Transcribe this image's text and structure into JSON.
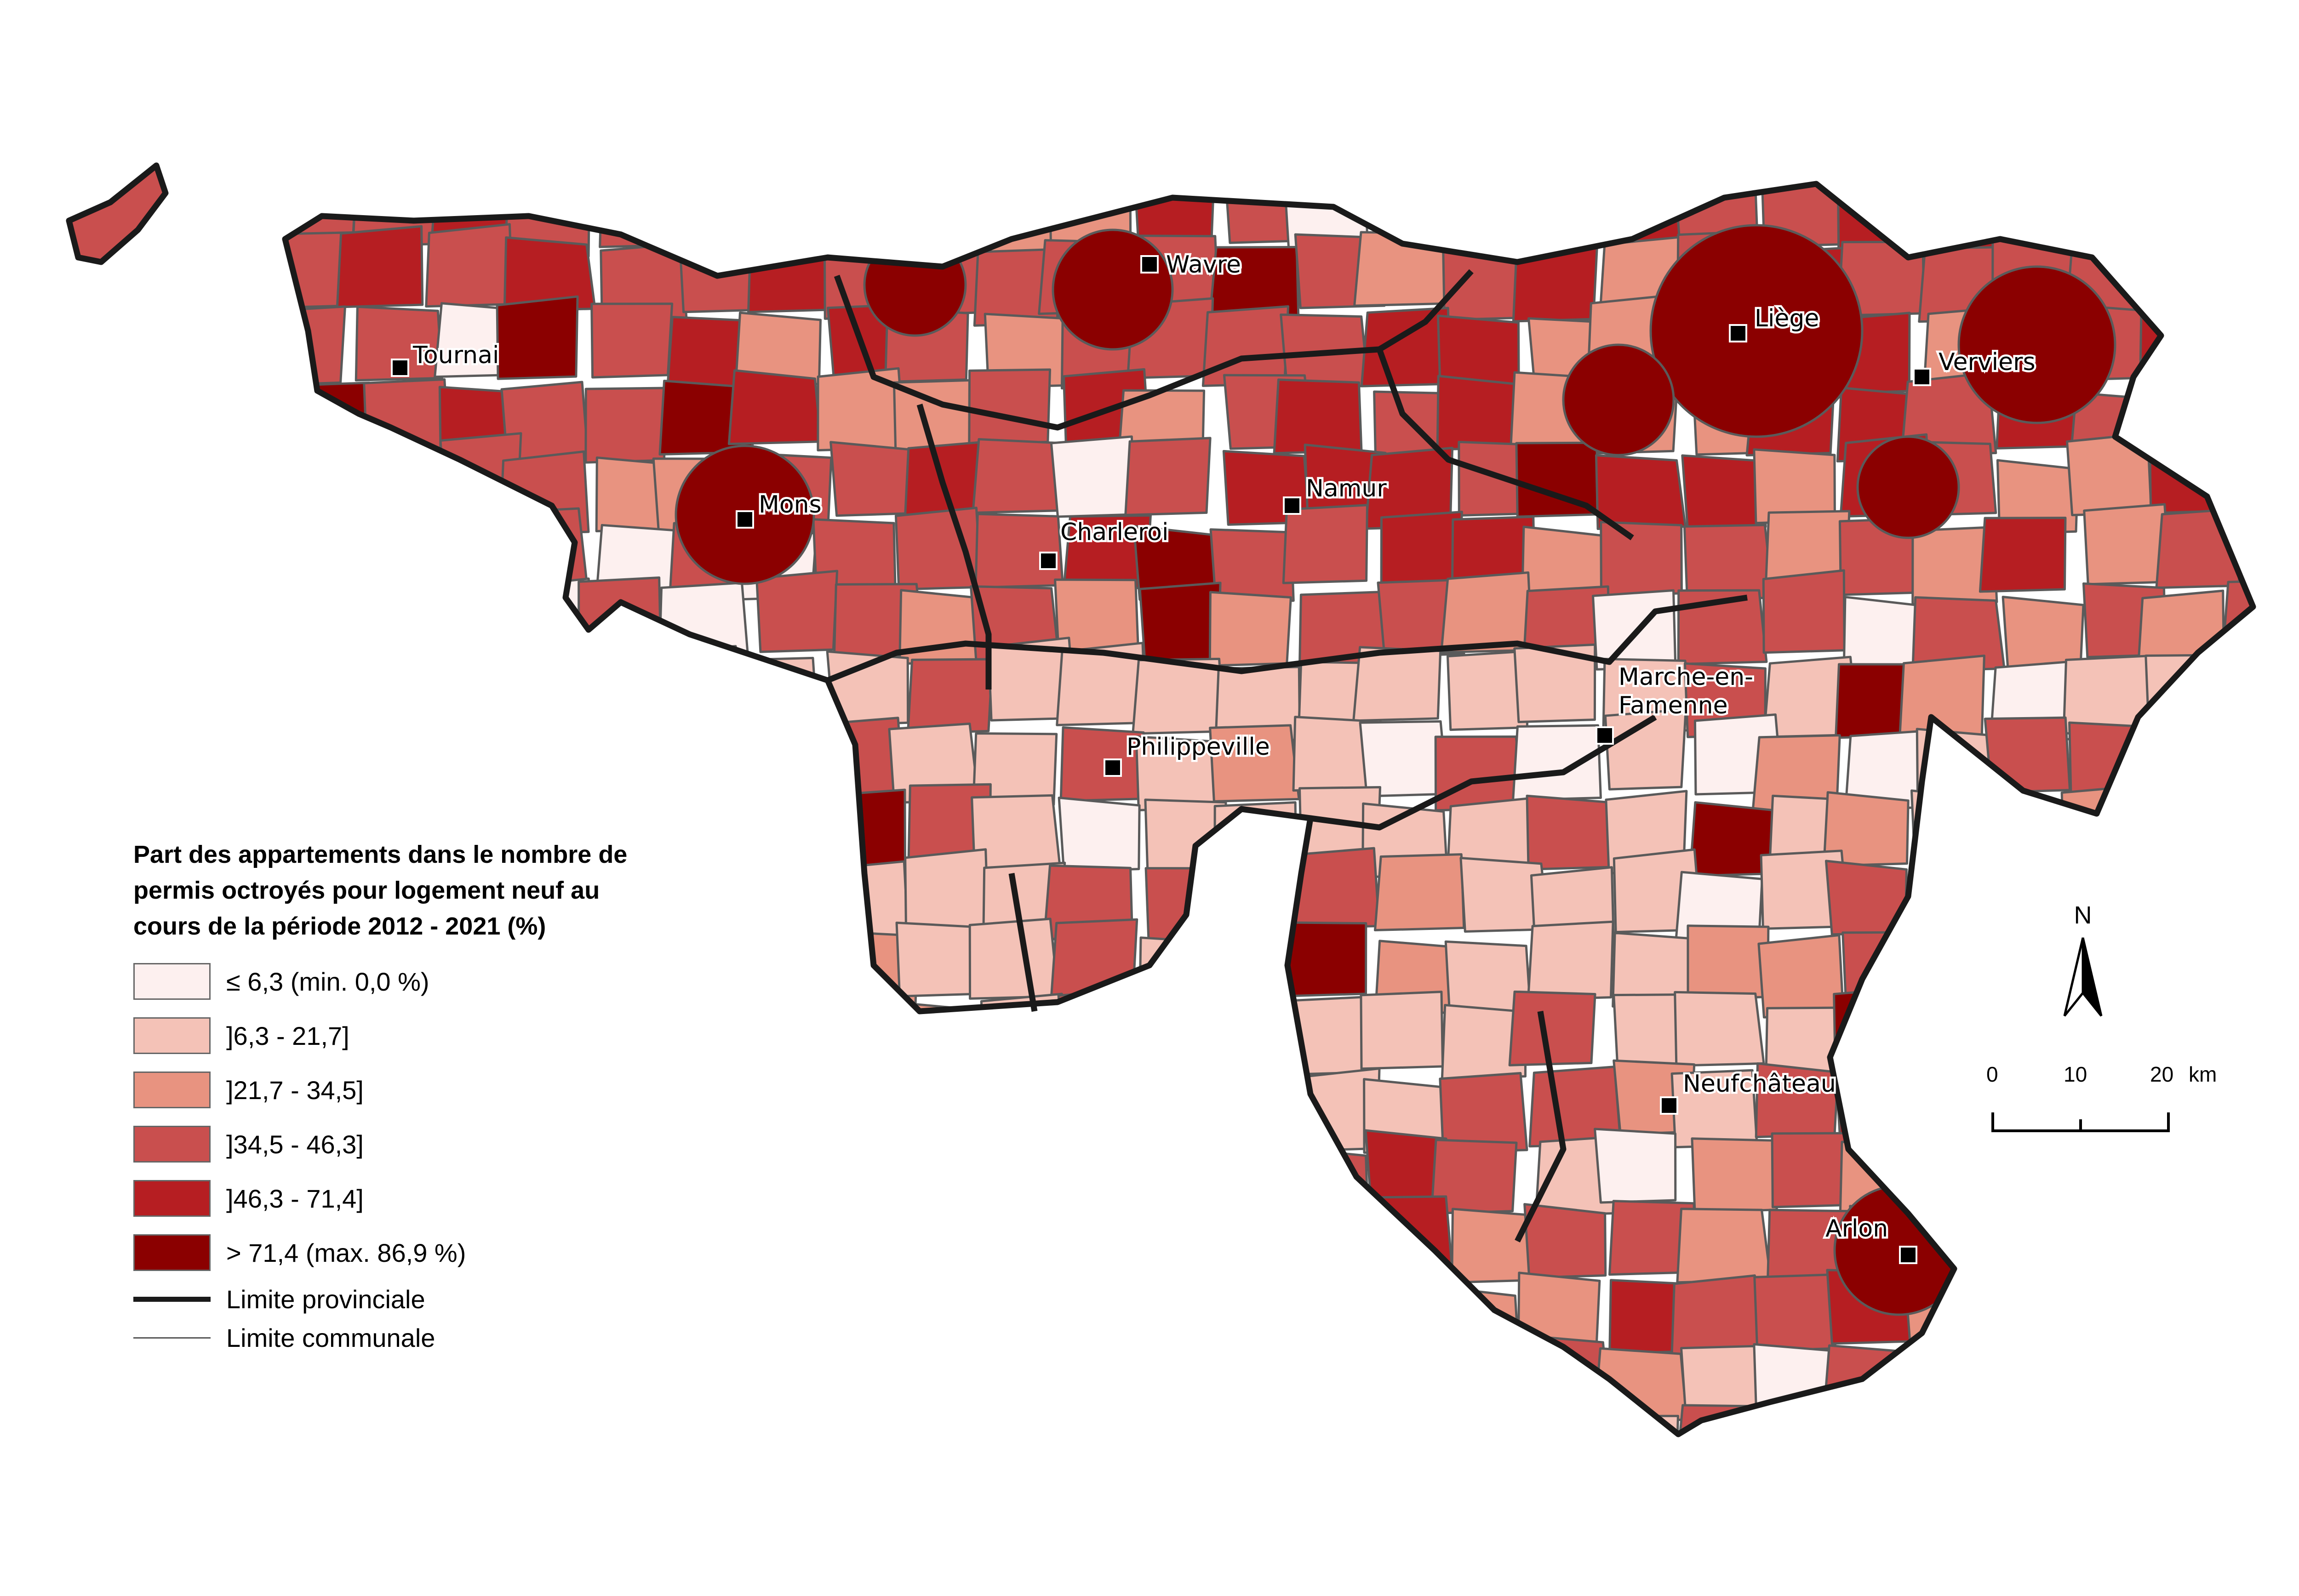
{
  "legend": {
    "title_line1": "Part des appartements dans le nombre de",
    "title_line2": "permis octroyés pour logement neuf au",
    "title_line3": "cours de la période 2012 - 2021 (%)",
    "classes": [
      {
        "label": "≤ 6,3 (min. 0,0 %)",
        "color": "#fdf0ef"
      },
      {
        "label": "]6,3 - 21,7]",
        "color": "#f4c2b7"
      },
      {
        "label": "]21,7 - 34,5]",
        "color": "#e89380"
      },
      {
        "label": "]34,5 - 46,3]",
        "color": "#c94f4e"
      },
      {
        "label": "]46,3 - 71,4]",
        "color": "#b61e22"
      },
      {
        "label": "> 71,4 (max. 86,9 %)",
        "color": "#8b0000"
      }
    ],
    "line_provincial": "Limite provinciale",
    "line_communal": "Limite communale"
  },
  "cities": [
    {
      "name": "Tournai"
    },
    {
      "name": "Wavre"
    },
    {
      "name": "Liège"
    },
    {
      "name": "Verviers"
    },
    {
      "name": "Mons"
    },
    {
      "name": "Namur"
    },
    {
      "name": "Charleroi"
    },
    {
      "name": "Marche-en-"
    },
    {
      "name": "Famenne"
    },
    {
      "name": "Philippeville"
    },
    {
      "name": "Neufchâteau"
    },
    {
      "name": "Arlon"
    }
  ],
  "north_arrow": {
    "label": "N"
  },
  "scale_bar": {
    "ticks": [
      "0",
      "10",
      "20"
    ],
    "unit": "km"
  }
}
